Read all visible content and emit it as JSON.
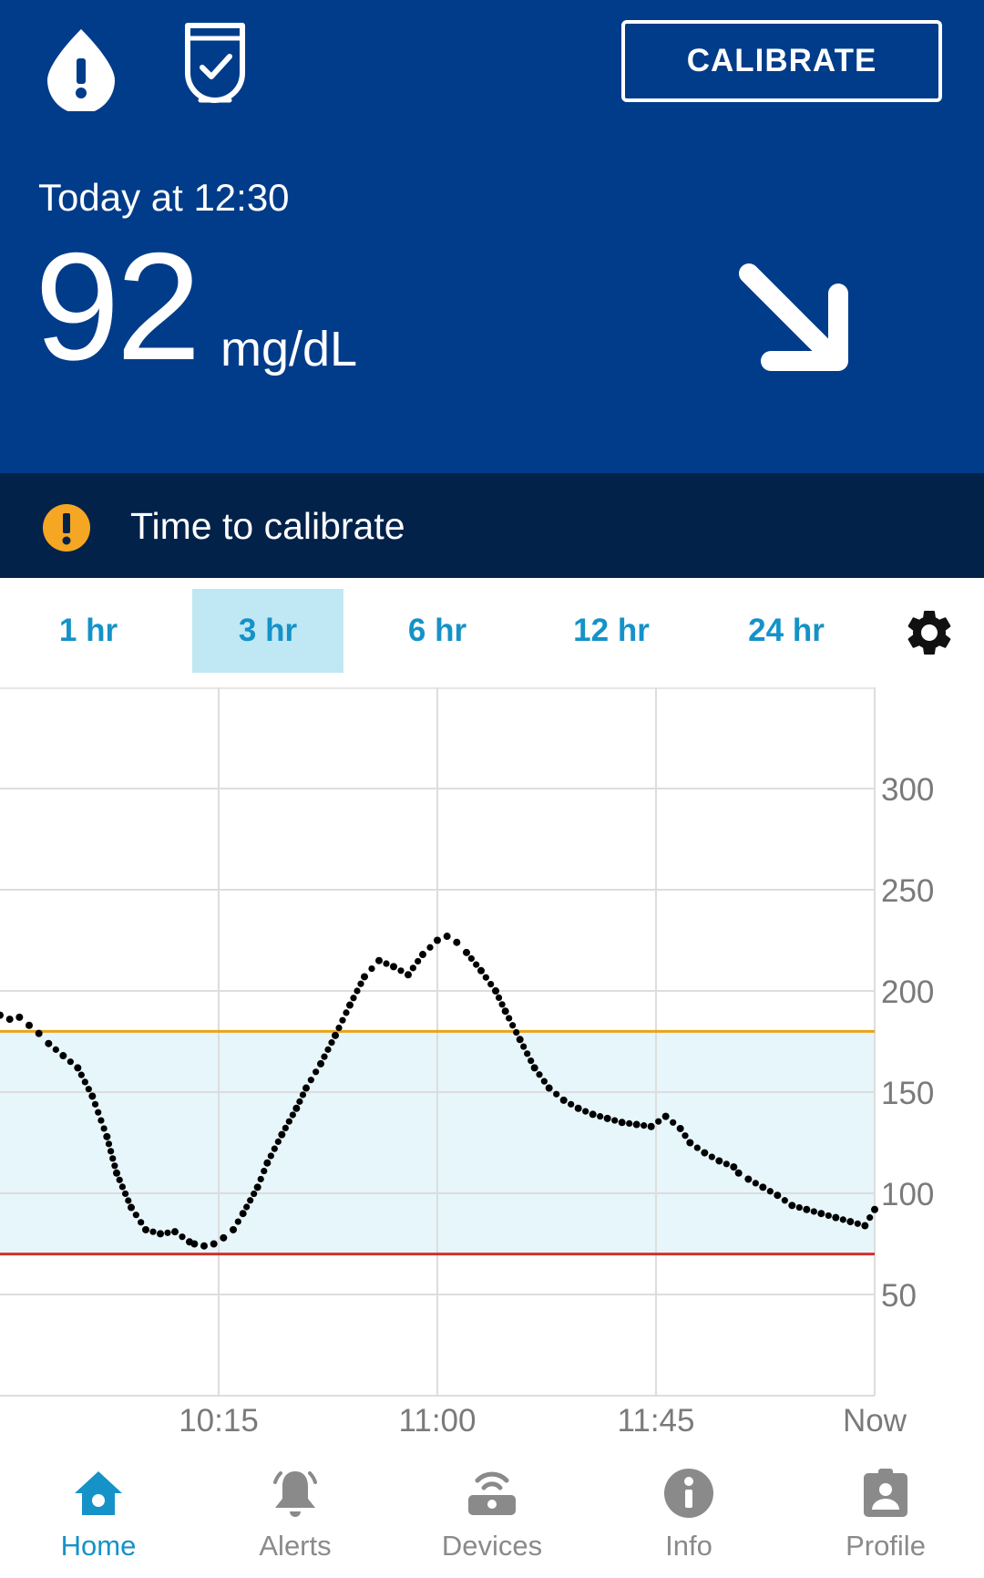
{
  "header": {
    "calibrate_label": "CALIBRATE",
    "timestamp": "Today at 12:30",
    "reading_value": "92",
    "reading_unit": "mg/dL",
    "trend": "falling-diagonal",
    "icons": [
      "alert-drop-icon",
      "transmitter-check-icon",
      "trend-arrow-down-right-icon"
    ]
  },
  "alert": {
    "text": "Time to calibrate",
    "icon": "warning-icon",
    "color": "#f5a623"
  },
  "tabs": [
    {
      "label": "1 hr",
      "active": false
    },
    {
      "label": "3 hr",
      "active": true
    },
    {
      "label": "6 hr",
      "active": false
    },
    {
      "label": "12 hr",
      "active": false
    },
    {
      "label": "24 hr",
      "active": false
    }
  ],
  "settings_icon": "gear-icon",
  "colors": {
    "header_bg": "#003c8a",
    "alert_bg": "#03224a",
    "accent": "#1592c8",
    "high_line": "#e8a317",
    "low_line": "#d0312d",
    "target_band": "#e6f6fb"
  },
  "chart_data": {
    "type": "scatter",
    "title": "",
    "xlabel": "",
    "ylabel": "",
    "x_tick_labels": [
      "10:15",
      "11:00",
      "11:45",
      "Now"
    ],
    "x_ticks_minutes": [
      45,
      90,
      135,
      180
    ],
    "xlim_minutes": [
      0,
      180
    ],
    "y_ticks": [
      50,
      100,
      150,
      200,
      250,
      300
    ],
    "ylim": [
      0,
      350
    ],
    "high_threshold": 180,
    "low_threshold": 70,
    "grid": true,
    "series": [
      {
        "x_minutes": [
          0,
          2,
          4,
          6,
          8,
          10,
          13,
          16,
          19,
          22,
          24,
          27,
          30,
          33,
          36,
          39,
          40,
          42,
          44,
          46,
          48,
          50,
          53,
          55,
          58,
          61,
          63,
          66,
          69,
          72,
          75,
          78,
          81,
          84,
          87,
          90,
          92,
          94,
          96,
          99,
          102,
          104,
          107,
          110,
          113,
          116,
          119,
          122,
          125,
          128,
          131,
          134,
          137,
          140,
          142,
          145,
          148,
          151,
          152,
          154,
          157,
          160,
          163,
          166,
          169,
          172,
          175,
          178,
          180
        ],
        "values": [
          188,
          186,
          187,
          183,
          179,
          174,
          168,
          162,
          148,
          128,
          110,
          93,
          82,
          80,
          81,
          76,
          75,
          74,
          75,
          78,
          82,
          90,
          103,
          115,
          129,
          142,
          152,
          164,
          178,
          193,
          207,
          215,
          212,
          208,
          218,
          225,
          227,
          224,
          219,
          210,
          200,
          190,
          176,
          162,
          152,
          146,
          142,
          139,
          137,
          135,
          134,
          133,
          138,
          132,
          125,
          120,
          116,
          113,
          110,
          107,
          103,
          99,
          94,
          92,
          90,
          88,
          86,
          84,
          92
        ]
      }
    ]
  },
  "nav": [
    {
      "label": "Home",
      "icon": "home-icon",
      "active": true
    },
    {
      "label": "Alerts",
      "icon": "bell-icon",
      "active": false
    },
    {
      "label": "Devices",
      "icon": "devices-icon",
      "active": false
    },
    {
      "label": "Info",
      "icon": "info-icon",
      "active": false
    },
    {
      "label": "Profile",
      "icon": "profile-icon",
      "active": false
    }
  ]
}
